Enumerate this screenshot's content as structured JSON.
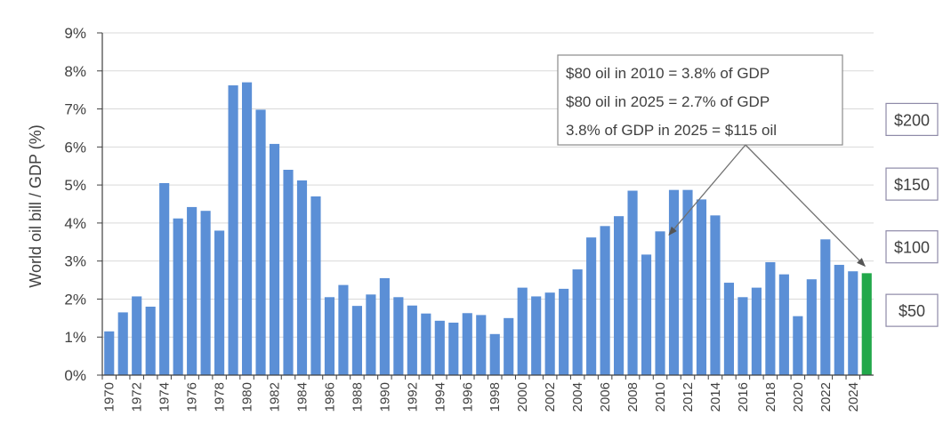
{
  "chart_data": {
    "type": "bar",
    "title": "",
    "xlabel": "",
    "ylabel": "World oil bill / GDP (%)",
    "ylim": [
      0,
      9
    ],
    "yticks": [
      "0%",
      "1%",
      "2%",
      "3%",
      "4%",
      "5%",
      "6%",
      "7%",
      "8%",
      "9%"
    ],
    "grid": "horizontal",
    "categories": [
      "1970",
      "1971",
      "1972",
      "1973",
      "1974",
      "1975",
      "1976",
      "1977",
      "1978",
      "1979",
      "1980",
      "1981",
      "1982",
      "1983",
      "1984",
      "1985",
      "1986",
      "1987",
      "1988",
      "1989",
      "1990",
      "1991",
      "1992",
      "1993",
      "1994",
      "1995",
      "1996",
      "1997",
      "1998",
      "1999",
      "2000",
      "2001",
      "2002",
      "2003",
      "2004",
      "2005",
      "2006",
      "2007",
      "2008",
      "2009",
      "2010",
      "2011",
      "2012",
      "2013",
      "2014",
      "2015",
      "2016",
      "2017",
      "2018",
      "2019",
      "2020",
      "2021",
      "2022",
      "2023",
      "2024",
      "2025"
    ],
    "x_tick_labels": [
      "1970",
      "1972",
      "1974",
      "1976",
      "1978",
      "1980",
      "1982",
      "1984",
      "1986",
      "1988",
      "1990",
      "1992",
      "1994",
      "1996",
      "1998",
      "2000",
      "2002",
      "2004",
      "2006",
      "2008",
      "2010",
      "2012",
      "2014",
      "2016",
      "2018",
      "2020",
      "2022",
      "2024"
    ],
    "values": [
      1.15,
      1.65,
      2.07,
      1.8,
      5.05,
      4.12,
      4.42,
      4.32,
      3.8,
      7.62,
      7.7,
      6.98,
      6.08,
      5.4,
      5.12,
      4.7,
      2.05,
      2.37,
      1.82,
      2.12,
      2.55,
      2.05,
      1.83,
      1.62,
      1.43,
      1.38,
      1.63,
      1.58,
      1.08,
      1.5,
      2.3,
      2.07,
      2.17,
      2.27,
      2.78,
      3.62,
      3.92,
      4.18,
      4.85,
      3.17,
      3.78,
      4.87,
      4.87,
      4.62,
      4.2,
      2.43,
      2.05,
      2.3,
      2.97,
      2.65,
      1.55,
      2.52,
      3.57,
      2.9,
      2.73,
      2.68
    ],
    "highlight_category": "2025",
    "colors": {
      "bar": "#5B8FD6",
      "highlight": "#21A84A",
      "grid": "#D9D9D9",
      "axis": "#404040",
      "arrow": "#707070"
    },
    "annotation": {
      "lines": [
        "$80 oil in 2010 = 3.8% of GDP",
        "$80 oil in 2025 = 2.7% of GDP",
        "3.8% of GDP in 2025 = $115 oil"
      ],
      "arrow_targets": [
        "2010",
        "2025"
      ]
    },
    "price_markers": [
      {
        "label": "$200",
        "value": 6.7
      },
      {
        "label": "$150",
        "value": 5.0
      },
      {
        "label": "$100",
        "value": 3.35
      },
      {
        "label": "$50",
        "value": 1.68
      }
    ]
  }
}
